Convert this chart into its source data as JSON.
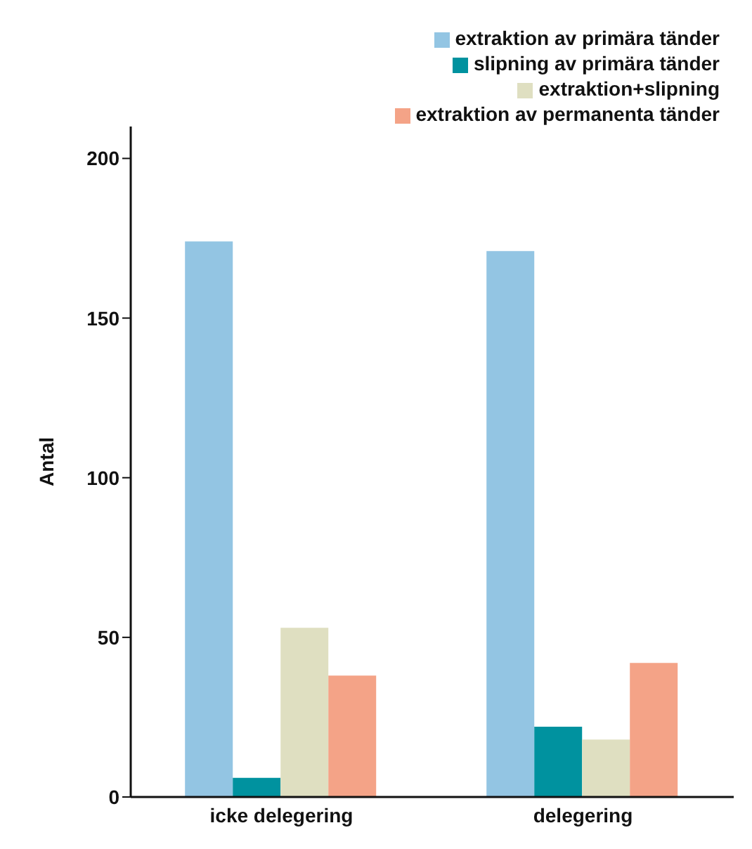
{
  "chart_data": {
    "type": "bar",
    "ylabel": "Antal",
    "categories": [
      "icke delegering",
      "delegering"
    ],
    "series": [
      {
        "name": "extraktion av primära tänder",
        "color": "#93c5e3",
        "values": [
          174,
          171
        ]
      },
      {
        "name": "slipning av primära tänder",
        "color": "#00929f",
        "values": [
          6,
          22
        ]
      },
      {
        "name": "extraktion+slipning",
        "color": "#dfdfc1",
        "values": [
          53,
          18
        ]
      },
      {
        "name": "extraktion av permanenta tänder",
        "color": "#f4a387",
        "values": [
          38,
          42
        ]
      }
    ],
    "ylim": [
      0,
      210
    ],
    "yticks": [
      0,
      50,
      100,
      150,
      200
    ],
    "grid": false,
    "legend": "top right"
  }
}
